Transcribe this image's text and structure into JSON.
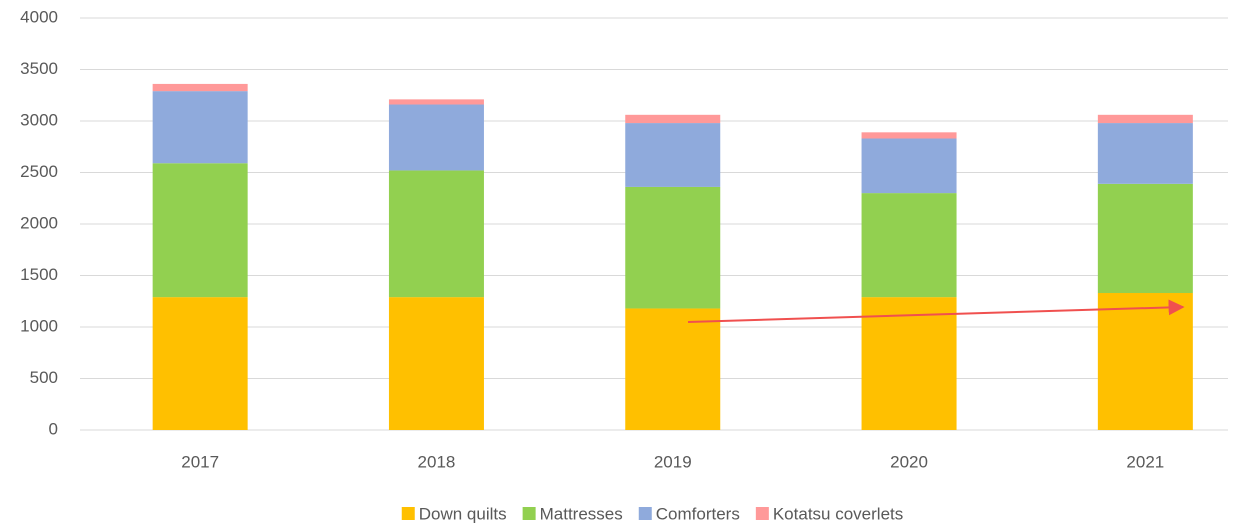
{
  "chart_data": {
    "type": "stacked_bar",
    "categories": [
      "2017",
      "2018",
      "2019",
      "2020",
      "2021"
    ],
    "series": [
      {
        "name": "Down quilts",
        "color": "#FFC000",
        "values": [
          1290,
          1290,
          1180,
          1290,
          1330
        ]
      },
      {
        "name": "Mattresses",
        "color": "#92D050",
        "values": [
          1300,
          1230,
          1180,
          1010,
          1060
        ]
      },
      {
        "name": "Comforters",
        "color": "#8FAADC",
        "values": [
          700,
          640,
          620,
          530,
          590
        ]
      },
      {
        "name": "Kotatsu coverlets",
        "color": "#FF9999",
        "values": [
          70,
          50,
          80,
          60,
          80
        ]
      }
    ],
    "ylim": [
      0,
      4000
    ],
    "yticks": [
      0,
      500,
      1000,
      1500,
      2000,
      2500,
      3000,
      3500,
      4000
    ],
    "grid": true,
    "legend": "bottom"
  }
}
